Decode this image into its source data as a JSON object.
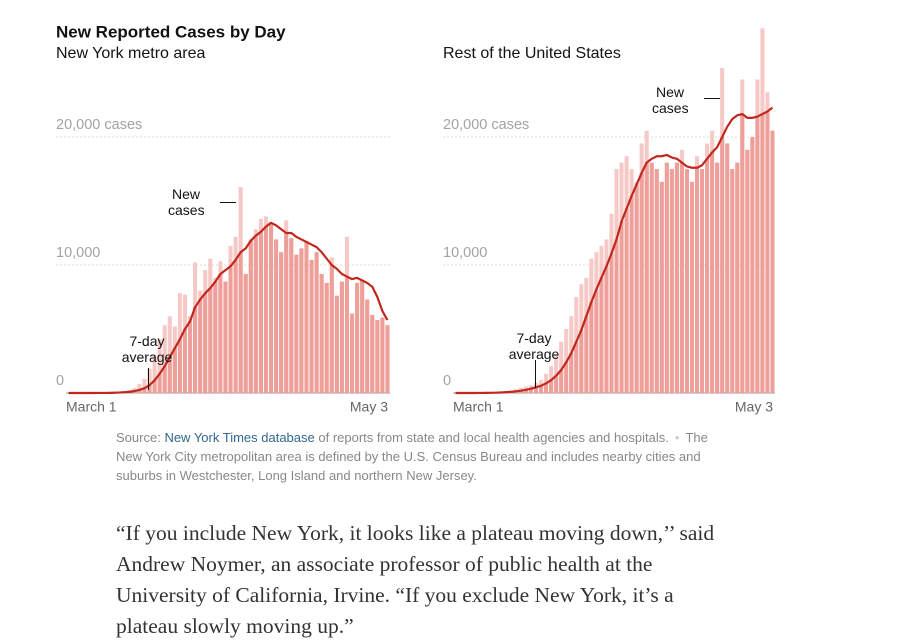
{
  "title": "New Reported Cases by Day",
  "chart_data": [
    {
      "type": "bar",
      "subtitle": "New York metro area",
      "categories": [
        "March 1",
        null,
        null,
        null,
        null,
        null,
        null,
        null,
        null,
        null,
        null,
        null,
        null,
        null,
        null,
        null,
        null,
        null,
        null,
        null,
        null,
        null,
        null,
        null,
        null,
        null,
        null,
        null,
        null,
        null,
        null,
        null,
        null,
        null,
        null,
        null,
        null,
        null,
        null,
        null,
        null,
        null,
        null,
        null,
        null,
        null,
        null,
        null,
        null,
        null,
        null,
        null,
        null,
        null,
        null,
        null,
        null,
        null,
        null,
        null,
        null,
        null,
        null,
        "May 3"
      ],
      "series": [
        {
          "name": "New cases",
          "type": "bar",
          "color": "#f6c9c6",
          "overlap_color": "#ee9f9a",
          "values": [
            0,
            0,
            0,
            1,
            2,
            5,
            8,
            20,
            40,
            60,
            100,
            160,
            250,
            400,
            700,
            1100,
            1900,
            3000,
            4200,
            5300,
            6000,
            5200,
            7800,
            7700,
            6000,
            10200,
            8000,
            9600,
            10500,
            9000,
            10300,
            8700,
            11500,
            12200,
            16100,
            9300,
            12000,
            12800,
            13600,
            13800,
            13200,
            12000,
            11000,
            13500,
            12100,
            10800,
            11300,
            11900,
            10400,
            11000,
            9300,
            8600,
            10600,
            7600,
            8700,
            12200,
            6200,
            8600,
            8800,
            7300,
            6100,
            5700,
            5900,
            5300
          ]
        },
        {
          "name": "7-day average",
          "type": "line",
          "color": "#c0281e",
          "values": [
            0,
            0,
            0,
            0,
            1,
            2,
            3,
            5,
            11,
            19,
            34,
            56,
            90,
            148,
            238,
            377,
            614,
            990,
            1500,
            2100,
            2800,
            3500,
            4200,
            5000,
            5600,
            6700,
            7300,
            7800,
            8200,
            8700,
            9300,
            9600,
            9900,
            10400,
            11000,
            11300,
            11900,
            12300,
            12600,
            13000,
            13300,
            13100,
            12800,
            12500,
            12500,
            12200,
            12000,
            11800,
            11600,
            11400,
            11000,
            10500,
            10000,
            9700,
            9300,
            9100,
            8900,
            9000,
            8800,
            8600,
            8300,
            7500,
            6400,
            5700
          ]
        }
      ],
      "ylim": [
        0,
        28600
      ],
      "yticks": [
        0,
        {
          "value": 10000,
          "label": "10,000"
        },
        {
          "value": 20000,
          "label": "20,000 cases"
        }
      ],
      "grid": true
    },
    {
      "type": "bar",
      "subtitle": "Rest of the United States",
      "categories": [
        "March 1",
        null,
        null,
        null,
        null,
        null,
        null,
        null,
        null,
        null,
        null,
        null,
        null,
        null,
        null,
        null,
        null,
        null,
        null,
        null,
        null,
        null,
        null,
        null,
        null,
        null,
        null,
        null,
        null,
        null,
        null,
        null,
        null,
        null,
        null,
        null,
        null,
        null,
        null,
        null,
        null,
        null,
        null,
        null,
        null,
        null,
        null,
        null,
        null,
        null,
        null,
        null,
        null,
        null,
        null,
        null,
        null,
        null,
        null,
        null,
        null,
        null,
        null,
        "May 3"
      ],
      "series": [
        {
          "name": "New cases",
          "type": "bar",
          "color": "#f6c9c6",
          "overlap_color": "#ee9f9a",
          "values": [
            0,
            0,
            0,
            0,
            10,
            20,
            30,
            40,
            60,
            100,
            150,
            200,
            300,
            400,
            500,
            600,
            800,
            1000,
            1500,
            2100,
            3000,
            4000,
            5000,
            6000,
            7500,
            8500,
            9000,
            10500,
            11000,
            11500,
            12000,
            14000,
            17500,
            18000,
            18500,
            17500,
            16500,
            19500,
            20500,
            18000,
            17500,
            16500,
            18000,
            17500,
            18000,
            19000,
            17500,
            16500,
            18500,
            17500,
            19500,
            20500,
            18000,
            25400,
            19500,
            17500,
            18000,
            24500,
            19000,
            20000,
            24500,
            28500,
            23500,
            20500
          ]
        },
        {
          "name": "7-day average",
          "type": "line",
          "color": "#c0281e",
          "values": [
            0,
            0,
            0,
            0,
            1,
            4,
            9,
            14,
            23,
            37,
            59,
            86,
            126,
            181,
            250,
            336,
            443,
            571,
            757,
            1000,
            1350,
            1800,
            2400,
            3100,
            4000,
            4900,
            6000,
            7100,
            8100,
            9000,
            9900,
            10900,
            12000,
            13400,
            14400,
            15400,
            16300,
            17200,
            18000,
            18300,
            18500,
            18500,
            18600,
            18400,
            18300,
            18000,
            17700,
            17600,
            17600,
            17800,
            18300,
            18800,
            19200,
            20000,
            20800,
            21400,
            21700,
            21800,
            21500,
            21500,
            21600,
            21800,
            22000,
            22300
          ]
        }
      ],
      "ylim": [
        0,
        28600
      ],
      "yticks": [
        0,
        {
          "value": 10000,
          "label": "10,000"
        },
        {
          "value": 20000,
          "label": "20,000 cases"
        }
      ],
      "grid": true
    }
  ],
  "source": {
    "prefix": "Source:",
    "link": "New York Times database",
    "text": "of reports from state and local health agencies and hospitals.",
    "separator": "•",
    "note": "The New York City metropolitan area is defined by the U.S. Census Bureau and includes nearby cities and suburbs in Westchester, Long Island and northern New Jersey."
  },
  "quote": "“If you include New York, it looks like a plateau moving down,’’ said Andrew Noymer, an associate professor of public health at the University of California, Irvine. “If you exclude New York, it’s a plateau slowly moving up.”"
}
